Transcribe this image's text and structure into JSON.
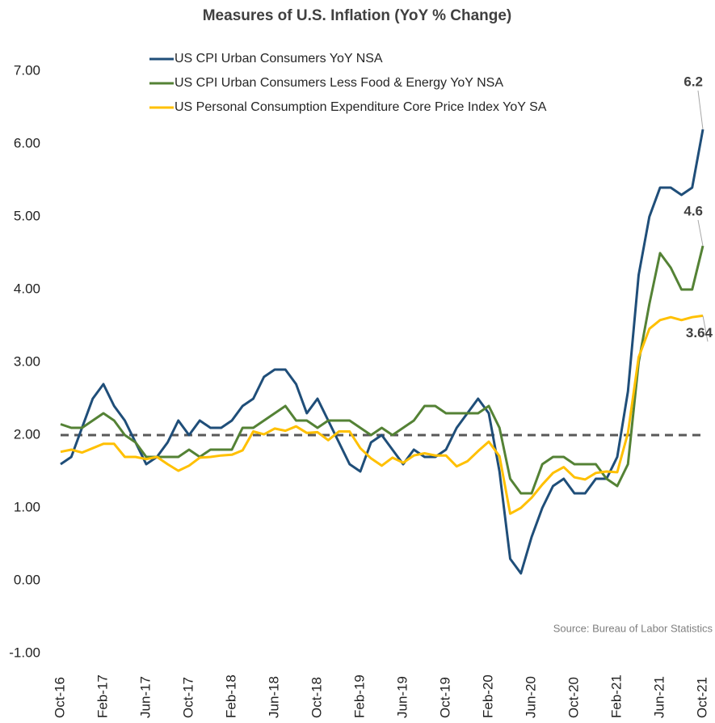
{
  "chart_data": {
    "type": "line",
    "title": "Measures of U.S. Inflation (YoY % Change)",
    "source": "Source: Bureau of Labor Statistics",
    "categories": [
      "Oct-16",
      null,
      null,
      null,
      "Feb-17",
      null,
      null,
      null,
      "Jun-17",
      null,
      null,
      null,
      "Oct-17",
      null,
      null,
      null,
      "Feb-18",
      null,
      null,
      null,
      "Jun-18",
      null,
      null,
      null,
      "Oct-18",
      null,
      null,
      null,
      "Feb-19",
      null,
      null,
      null,
      "Jun-19",
      null,
      null,
      null,
      "Oct-19",
      null,
      null,
      null,
      "Feb-20",
      null,
      null,
      null,
      "Jun-20",
      null,
      null,
      null,
      "Oct-20",
      null,
      null,
      null,
      "Feb-21",
      null,
      null,
      null,
      "Jun-21",
      null,
      null,
      null,
      "Oct-21"
    ],
    "series": [
      {
        "name": "US CPI Urban Consumers YoY NSA",
        "color": "#1f4e79",
        "end_label": true,
        "values": [
          1.6,
          1.7,
          2.1,
          2.5,
          2.7,
          2.4,
          2.2,
          1.9,
          1.6,
          1.7,
          1.9,
          2.2,
          2.0,
          2.2,
          2.1,
          2.1,
          2.2,
          2.4,
          2.5,
          2.8,
          2.9,
          2.9,
          2.7,
          2.3,
          2.5,
          2.2,
          1.9,
          1.6,
          1.5,
          1.9,
          2.0,
          1.8,
          1.6,
          1.8,
          1.7,
          1.7,
          1.8,
          2.1,
          2.3,
          2.5,
          2.3,
          1.5,
          0.3,
          0.1,
          0.6,
          1.0,
          1.3,
          1.4,
          1.2,
          1.2,
          1.4,
          1.4,
          1.7,
          2.6,
          4.2,
          5.0,
          5.4,
          5.4,
          5.3,
          5.4,
          6.2
        ]
      },
      {
        "name": "US CPI Urban Consumers Less Food & Energy YoY NSA",
        "color": "#548235",
        "end_label": true,
        "values": [
          2.15,
          2.1,
          2.1,
          2.2,
          2.3,
          2.2,
          2.0,
          1.9,
          1.7,
          1.7,
          1.7,
          1.7,
          1.8,
          1.7,
          1.8,
          1.8,
          1.8,
          2.1,
          2.1,
          2.2,
          2.3,
          2.4,
          2.2,
          2.2,
          2.1,
          2.2,
          2.2,
          2.2,
          2.1,
          2.0,
          2.1,
          2.0,
          2.1,
          2.2,
          2.4,
          2.4,
          2.3,
          2.3,
          2.3,
          2.3,
          2.4,
          2.1,
          1.4,
          1.2,
          1.2,
          1.6,
          1.7,
          1.7,
          1.6,
          1.6,
          1.6,
          1.4,
          1.3,
          1.6,
          3.0,
          3.8,
          4.5,
          4.3,
          4.0,
          4.0,
          4.6
        ]
      },
      {
        "name": "US Personal Consumption Expenditure Core Price Index YoY SA",
        "color": "#ffc000",
        "end_label": true,
        "values": [
          1.77,
          1.8,
          1.76,
          1.82,
          1.88,
          1.88,
          1.7,
          1.7,
          1.67,
          1.7,
          1.6,
          1.51,
          1.58,
          1.69,
          1.7,
          1.72,
          1.73,
          1.79,
          2.05,
          2.01,
          2.09,
          2.06,
          2.12,
          2.03,
          2.04,
          1.93,
          2.05,
          2.05,
          1.82,
          1.68,
          1.58,
          1.69,
          1.62,
          1.72,
          1.75,
          1.72,
          1.72,
          1.57,
          1.64,
          1.78,
          1.91,
          1.71,
          0.92,
          1.0,
          1.14,
          1.32,
          1.48,
          1.56,
          1.42,
          1.39,
          1.48,
          1.5,
          1.49,
          2.03,
          3.07,
          3.46,
          3.58,
          3.62,
          3.58,
          3.62,
          3.64
        ]
      }
    ],
    "ylim": [
      -1,
      7
    ],
    "yticks": [
      {
        "value": -1,
        "label": "-1.00"
      },
      {
        "value": 0,
        "label": "0.00"
      },
      {
        "value": 1,
        "label": "1.00"
      },
      {
        "value": 2,
        "label": "2.00"
      },
      {
        "value": 3,
        "label": "3.00"
      },
      {
        "value": 4,
        "label": "4.00"
      },
      {
        "value": 5,
        "label": "5.00"
      },
      {
        "value": 6,
        "label": "6.00"
      },
      {
        "value": 7,
        "label": "7.00"
      }
    ],
    "reference_line": 2,
    "grid": false,
    "legend": "top-left"
  }
}
